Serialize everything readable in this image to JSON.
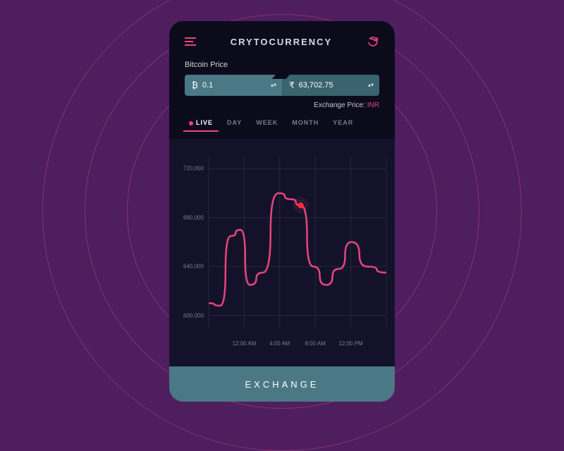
{
  "background": {
    "color": "#4e1e5f",
    "ring_color": "rgba(220,80,140,0.4)",
    "ring_radii": [
      160,
      220,
      280,
      340
    ]
  },
  "header": {
    "title": "CRYTOCURRENCY"
  },
  "price_section": {
    "label": "Bitcoin Price",
    "from_currency_symbol": "₿",
    "from_value": "0.1",
    "to_currency_symbol": "₹",
    "to_value": "63,702.75",
    "exchange_label": "Exchange Price: ",
    "exchange_currency": "INR"
  },
  "tabs": {
    "items": [
      "LIVE",
      "DAY",
      "WEEK",
      "MONTH",
      "YEAR"
    ],
    "active_index": 0
  },
  "chart": {
    "type": "line",
    "colors": {
      "line": "#e8457c",
      "grid": "#2a3848",
      "axis_text": "#7a7a8c",
      "marker_fill": "#ff3030",
      "marker_rings": "#e8457c"
    },
    "ylim": [
      590000,
      730000
    ],
    "y_ticks": [
      600000,
      640000,
      680000,
      720000
    ],
    "y_tick_labels": [
      "600,000",
      "640,000",
      "680,000",
      "720,000"
    ],
    "x_tick_labels": [
      "12:00 AM",
      "4:00 AM",
      "8:00 AM",
      "12:00 PM"
    ],
    "points": [
      [
        0,
        610000
      ],
      [
        18,
        608000
      ],
      [
        35,
        665000
      ],
      [
        50,
        670000
      ],
      [
        65,
        625000
      ],
      [
        85,
        635000
      ],
      [
        110,
        700000
      ],
      [
        130,
        695000
      ],
      [
        145,
        690000
      ],
      [
        165,
        640000
      ],
      [
        185,
        625000
      ],
      [
        205,
        638000
      ],
      [
        225,
        660000
      ],
      [
        250,
        640000
      ],
      [
        280,
        635000
      ]
    ],
    "marker": {
      "x_index": 145,
      "y": 690000
    }
  },
  "button": {
    "label": "EXCHANGE"
  }
}
